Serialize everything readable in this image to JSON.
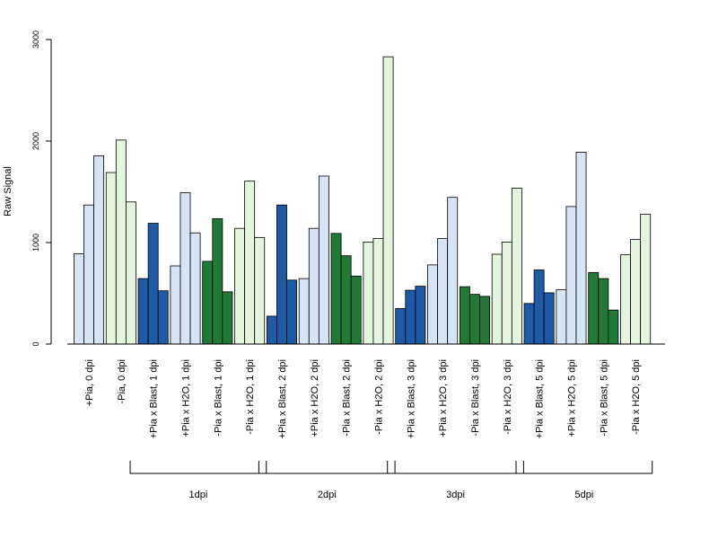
{
  "chart_data": {
    "type": "bar",
    "title": "",
    "xlabel": "",
    "ylabel": "Raw Signal",
    "ylim": [
      0,
      3000
    ],
    "yticks": [
      "0",
      "1000",
      "2000",
      "3000"
    ],
    "bars_per_group": 3,
    "colors": {
      "light_blue": "#d6e4f5",
      "light_green": "#e3f5dc",
      "dark_blue": "#1f5aa6",
      "dark_green": "#207a36",
      "border": "#000000"
    },
    "groups": [
      {
        "label": "+Pia, 0 dpi",
        "color": "light_blue",
        "values": [
          890,
          1370,
          1855
        ]
      },
      {
        "label": "-Pia, 0 dpi",
        "color": "light_green",
        "values": [
          1690,
          2010,
          1400
        ]
      },
      {
        "label": "+Pia x Blast, 1 dpi",
        "color": "dark_blue",
        "values": [
          645,
          1190,
          525
        ]
      },
      {
        "label": "+Pia x H2O, 1 dpi",
        "color": "light_blue",
        "values": [
          770,
          1490,
          1095
        ]
      },
      {
        "label": "-Pia x Blast, 1 dpi",
        "color": "dark_green",
        "values": [
          815,
          1235,
          515
        ]
      },
      {
        "label": "-Pia x H2O, 1 dpi",
        "color": "light_green",
        "values": [
          1140,
          1605,
          1050
        ]
      },
      {
        "label": "+Pia x Blast, 2 dpi",
        "color": "dark_blue",
        "values": [
          275,
          1370,
          630
        ]
      },
      {
        "label": "+Pia x H2O, 2 dpi",
        "color": "light_blue",
        "values": [
          645,
          1140,
          1655
        ]
      },
      {
        "label": "-Pia x Blast, 2 dpi",
        "color": "dark_green",
        "values": [
          1090,
          870,
          670
        ]
      },
      {
        "label": "-Pia x H2O, 2 dpi",
        "color": "light_green",
        "values": [
          1005,
          1040,
          2830
        ]
      },
      {
        "label": "+Pia x Blast, 3 dpi",
        "color": "dark_blue",
        "values": [
          350,
          530,
          570
        ]
      },
      {
        "label": "+Pia x H2O, 3 dpi",
        "color": "light_blue",
        "values": [
          780,
          1040,
          1445
        ]
      },
      {
        "label": "-Pia x Blast, 3 dpi",
        "color": "dark_green",
        "values": [
          565,
          490,
          470
        ]
      },
      {
        "label": "-Pia x H2O, 3 dpi",
        "color": "light_green",
        "values": [
          885,
          1005,
          1535
        ]
      },
      {
        "label": "+Pia x Blast, 5 dpi",
        "color": "dark_blue",
        "values": [
          400,
          730,
          505
        ]
      },
      {
        "label": "+Pia x H2O, 5 dpi",
        "color": "light_blue",
        "values": [
          535,
          1355,
          1890
        ]
      },
      {
        "label": "-Pia x Blast, 5 dpi",
        "color": "dark_green",
        "values": [
          705,
          645,
          335
        ]
      },
      {
        "label": "-Pia x H2O, 5 dpi",
        "color": "light_green",
        "values": [
          880,
          1030,
          1280
        ]
      }
    ],
    "brackets": [
      {
        "label": "1dpi",
        "from_group": 2,
        "to_group": 5
      },
      {
        "label": "2dpi",
        "from_group": 6,
        "to_group": 9
      },
      {
        "label": "3dpi",
        "from_group": 10,
        "to_group": 13
      },
      {
        "label": "5dpi",
        "from_group": 14,
        "to_group": 17
      }
    ]
  }
}
